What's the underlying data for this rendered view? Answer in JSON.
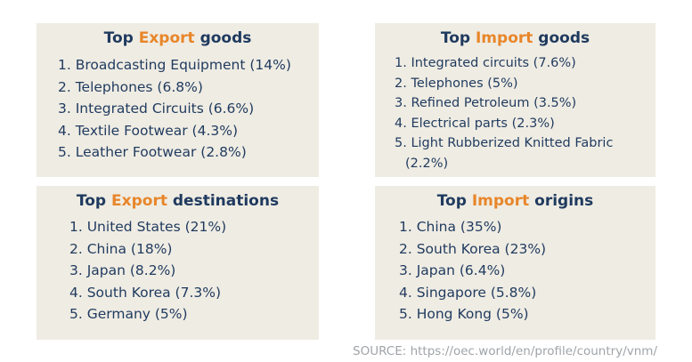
{
  "panels": {
    "export_goods": {
      "title_pre": "Top ",
      "title_accent": "Export",
      "title_post": " goods",
      "items": [
        "1. Broadcasting Equipment (14%)",
        "2. Telephones (6.8%)",
        "3. Integrated Circuits (6.6%)",
        "4. Textile Footwear (4.3%)",
        "5. Leather Footwear (2.8%)"
      ]
    },
    "import_goods": {
      "title_pre": "Top ",
      "title_accent": "Import",
      "title_post": " goods",
      "items": [
        "1. Integrated circuits (7.6%)",
        "2. Telephones (5%)",
        "3. Refined Petroleum (3.5%)",
        "4. Electrical parts (2.3%)",
        "5. Light Rubberized Knitted Fabric"
      ],
      "item5_cont": "(2.2%)"
    },
    "export_destinations": {
      "title_pre": "Top ",
      "title_accent": "Export",
      "title_post": " destinations",
      "items": [
        "1. United States (21%)",
        "2. China (18%)",
        "3. Japan (8.2%)",
        "4. South Korea (7.3%)",
        "5. Germany (5%)"
      ]
    },
    "import_origins": {
      "title_pre": "Top ",
      "title_accent": "Import",
      "title_post": " origins",
      "items": [
        "1. China (35%)",
        "2. South Korea (23%)",
        "3. Japan (6.4%)",
        "4. Singapore (5.8%)",
        "5. Hong Kong (5%)"
      ]
    }
  },
  "source": "SOURCE: https://oec.world/en/profile/country/vnm/",
  "colors": {
    "panel_bg": "#efece3",
    "text": "#1f3a5f",
    "accent": "#e8862a",
    "source_text": "#a0a4a8"
  }
}
